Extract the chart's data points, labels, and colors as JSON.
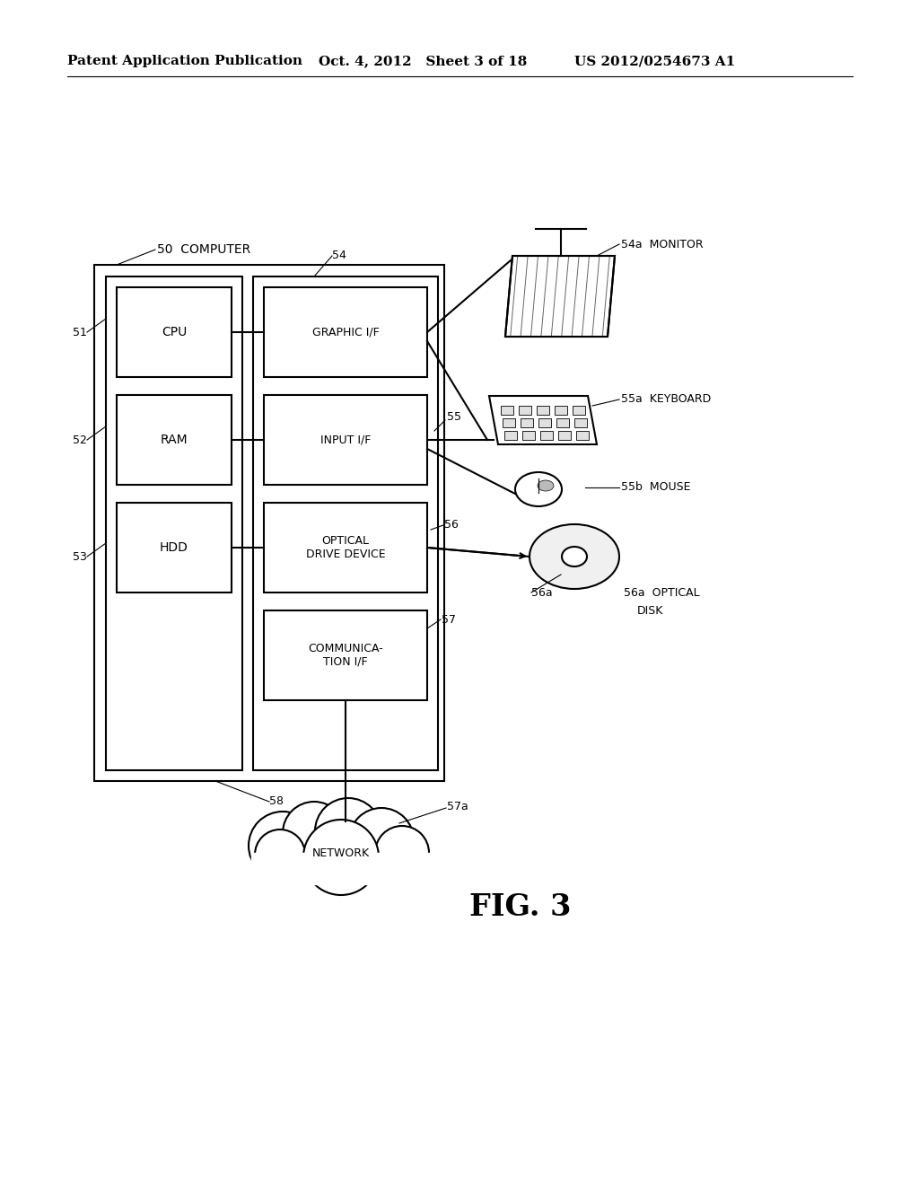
{
  "bg_color": "#ffffff",
  "header_left": "Patent Application Publication",
  "header_mid": "Oct. 4, 2012   Sheet 3 of 18",
  "header_right": "US 2012/0254673 A1",
  "fig_label": "FIG. 3",
  "font_color": "#000000",
  "line_color": "#000000"
}
